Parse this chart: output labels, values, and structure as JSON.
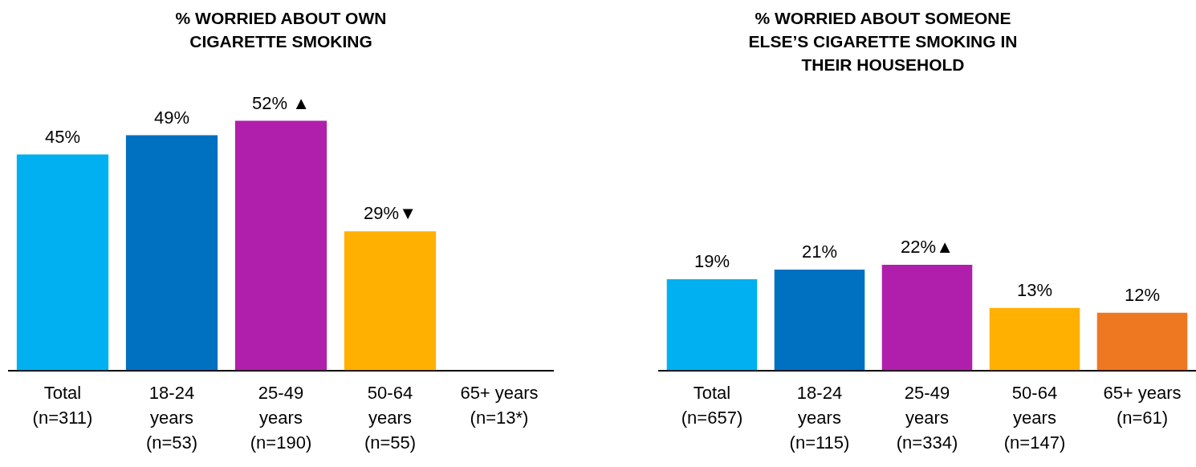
{
  "chart_data": [
    {
      "type": "bar",
      "title": "% WORRIED ABOUT OWN\nCIGARETTE SMOKING",
      "categories": [
        "Total\n(n=311)",
        "18-24\nyears\n(n=53)",
        "25-49\nyears\n(n=190)",
        "50-64\nyears\n(n=55)",
        "65+ years\n(n=13*)"
      ],
      "values": [
        45,
        49,
        52,
        29,
        null
      ],
      "colors": [
        "#00b0f0",
        "#0070c0",
        "#b01fab",
        "#ffb000",
        "#ee7722"
      ],
      "value_labels": [
        "45%",
        "49%",
        "52% ▲",
        "29%▼",
        null
      ]
    },
    {
      "type": "bar",
      "title": "% WORRIED ABOUT SOMEONE\nELSE’S CIGARETTE SMOKING IN\nTHEIR HOUSEHOLD",
      "categories": [
        "Total\n(n=657)",
        "18-24\nyears\n(n=115)",
        "25-49\nyears\n(n=334)",
        "50-64\nyears\n(n=147)",
        "65+ years\n(n=61)"
      ],
      "values": [
        19,
        21,
        22,
        13,
        12
      ],
      "colors": [
        "#00b0f0",
        "#0070c0",
        "#b01fab",
        "#ffb000",
        "#ee7722"
      ],
      "value_labels": [
        "19%",
        "21%",
        "22%▲",
        "13%",
        "12%"
      ]
    }
  ]
}
